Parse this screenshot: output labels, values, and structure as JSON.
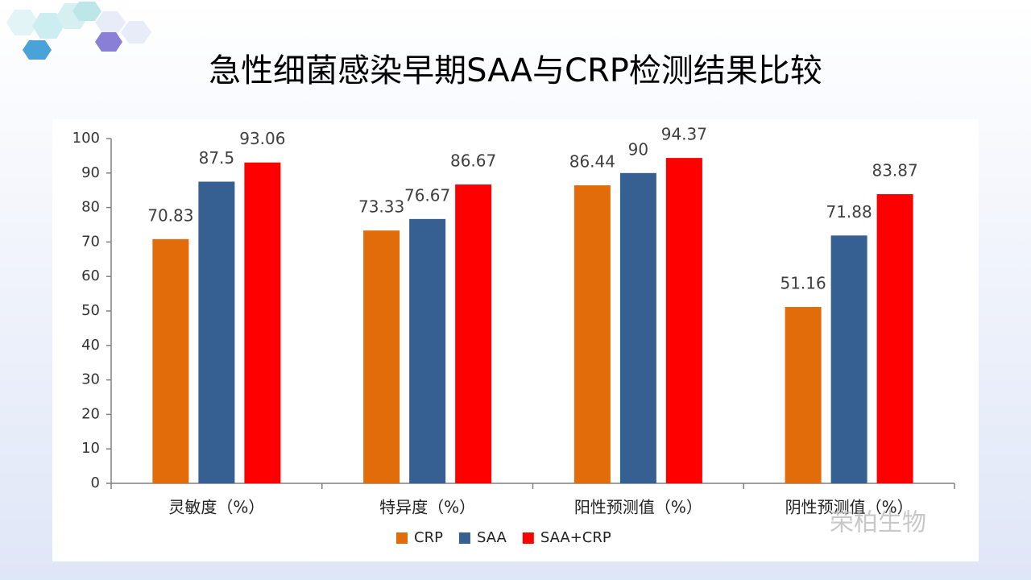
{
  "chart_data": {
    "type": "bar",
    "title": "急性细菌感染早期SAA与CRP检测结果比较",
    "categories": [
      "灵敏度（%）",
      "特异度（%）",
      "阳性预测值（%）",
      "阴性预测值（%）"
    ],
    "series": [
      {
        "name": "CRP",
        "color": "#e36c0a",
        "values": [
          70.83,
          73.33,
          86.44,
          51.16
        ]
      },
      {
        "name": "SAA",
        "color": "#376092",
        "values": [
          87.5,
          76.67,
          90,
          71.88
        ]
      },
      {
        "name": "SAA+CRP",
        "color": "#ff0000",
        "values": [
          93.06,
          86.67,
          94.37,
          83.87
        ]
      }
    ],
    "ylim": [
      0,
      100
    ],
    "yticks": [
      0,
      10,
      20,
      30,
      40,
      50,
      60,
      70,
      80,
      90,
      100
    ],
    "legend": "bottom",
    "watermark": "荣柏生物"
  }
}
